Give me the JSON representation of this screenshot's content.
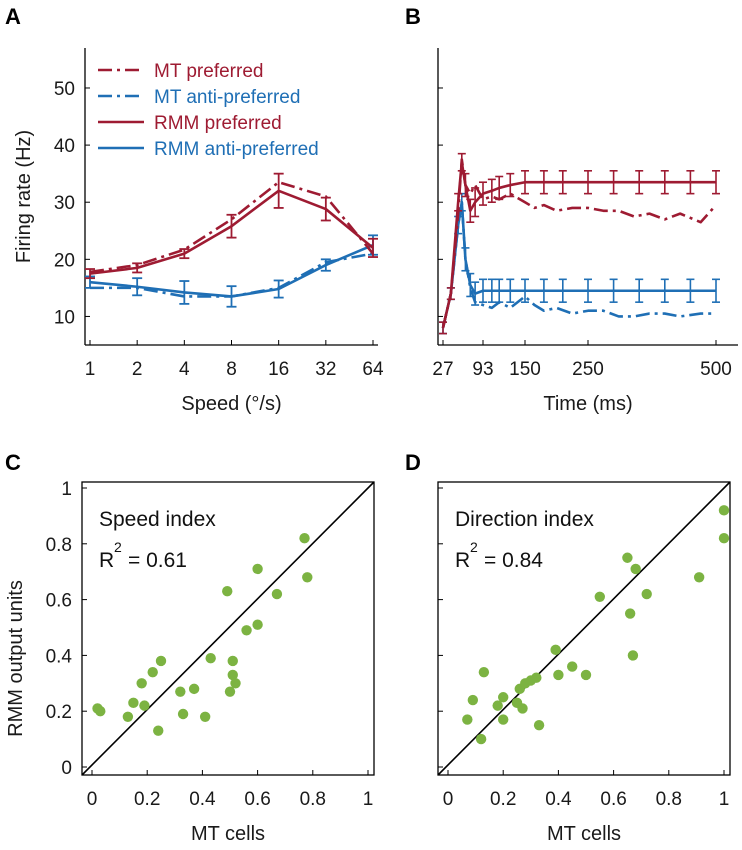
{
  "colors": {
    "red": "#9e1b32",
    "blue": "#1f6fb5",
    "green": "#7cb342",
    "axis": "#000000"
  },
  "chart_data": [
    {
      "panel": "A",
      "type": "line",
      "xlabel": "Speed (°/s)",
      "ylabel": "Firing rate (Hz)",
      "x_scale": "log2",
      "xticks": [
        1,
        2,
        4,
        8,
        16,
        32,
        64
      ],
      "xtick_labels": [
        "1",
        "2",
        "4",
        "8",
        "16",
        "32",
        "64"
      ],
      "yticks": [
        10,
        20,
        30,
        40,
        50
      ],
      "ylim": [
        5,
        57
      ],
      "legend": [
        "MT preferred",
        "MT anti-preferred",
        "RMM preferred",
        "RMM anti-preferred"
      ],
      "series": [
        {
          "name": "MT preferred",
          "style": "dashdot",
          "color": "red",
          "x": [
            1,
            2,
            4,
            8,
            16,
            32,
            64
          ],
          "values": [
            17.8,
            19.0,
            21.7,
            27.0,
            33.5,
            31.0,
            21.0
          ]
        },
        {
          "name": "MT anti-preferred",
          "style": "dashdot",
          "color": "blue",
          "x": [
            1,
            2,
            4,
            8,
            16,
            32,
            64
          ],
          "values": [
            15.0,
            15.0,
            13.5,
            13.5,
            15.0,
            19.5,
            21.0
          ]
        },
        {
          "name": "RMM preferred",
          "style": "solid",
          "color": "red",
          "x": [
            1,
            2,
            4,
            8,
            16,
            32,
            64
          ],
          "values": [
            17.5,
            18.5,
            21.0,
            25.8,
            32.0,
            28.8,
            22.0
          ],
          "err": [
            0.8,
            0.8,
            0.8,
            2.0,
            3.0,
            2.0,
            1.6
          ]
        },
        {
          "name": "RMM anti-preferred",
          "style": "solid",
          "color": "blue",
          "x": [
            1,
            2,
            4,
            8,
            16,
            32,
            64
          ],
          "values": [
            16.0,
            15.2,
            14.2,
            13.5,
            14.8,
            19.0,
            22.5
          ],
          "err": [
            1.0,
            1.5,
            2.0,
            1.8,
            1.5,
            1.0,
            1.7
          ]
        }
      ]
    },
    {
      "panel": "B",
      "type": "line",
      "xlabel": "Time (ms)",
      "xticks": [
        27,
        93,
        150,
        250,
        500
      ],
      "xtick_labels": [
        "27",
        "93",
        "150",
        "250",
        "500"
      ],
      "ylim": [
        5,
        57
      ],
      "series": [
        {
          "name": "MT preferred",
          "style": "dashdot",
          "color": "red",
          "x": [
            27,
            40,
            52,
            58,
            64,
            72,
            80,
            93,
            105,
            115,
            130,
            150,
            165,
            180,
            200,
            225,
            250,
            280,
            310,
            340,
            370,
            400,
            430,
            470,
            500
          ],
          "values": [
            8,
            14,
            28,
            37.5,
            33,
            31.5,
            33,
            30.5,
            31,
            30.5,
            31.5,
            30,
            29,
            29.5,
            28.5,
            29,
            29,
            28.5,
            28.5,
            27.5,
            28,
            27,
            28,
            26.5,
            29.5
          ]
        },
        {
          "name": "MT anti-preferred",
          "style": "dashdot",
          "color": "blue",
          "x": [
            27,
            40,
            52,
            58,
            64,
            72,
            80,
            93,
            105,
            115,
            130,
            150,
            165,
            180,
            200,
            225,
            250,
            280,
            310,
            340,
            370,
            400,
            430,
            470,
            500
          ],
          "values": [
            8,
            14,
            26,
            30,
            20,
            15,
            12.5,
            12,
            11.5,
            12.5,
            11.5,
            13.5,
            12,
            11,
            11.5,
            10.5,
            11,
            11,
            10,
            10,
            10.5,
            10.5,
            10,
            10.5,
            10.5
          ]
        },
        {
          "name": "RMM preferred",
          "style": "solid",
          "color": "red",
          "x": [
            27,
            40,
            52,
            58,
            64,
            72,
            80,
            93,
            105,
            115,
            130,
            150,
            180,
            210,
            250,
            300,
            350,
            400,
            450,
            500
          ],
          "values": [
            8,
            14,
            30,
            37,
            33,
            28.5,
            30,
            31.5,
            32,
            32.5,
            33,
            33.5,
            33.5,
            33.5,
            33.5,
            33.5,
            33.5,
            33.5,
            33.5,
            33.5
          ],
          "err": [
            1,
            1,
            1.5,
            1.5,
            2,
            2,
            2.5,
            2,
            2,
            2,
            2,
            2,
            2,
            2,
            2,
            2,
            2,
            2,
            2,
            2
          ]
        },
        {
          "name": "RMM anti-preferred",
          "style": "solid",
          "color": "blue",
          "x": [
            27,
            40,
            52,
            58,
            64,
            72,
            80,
            93,
            105,
            115,
            130,
            150,
            180,
            210,
            250,
            300,
            350,
            400,
            450,
            500
          ],
          "values": [
            8,
            14,
            26,
            30,
            20,
            15.5,
            14,
            14.5,
            14.5,
            14.5,
            14.5,
            14.5,
            14.5,
            14.5,
            14.5,
            14.5,
            14.5,
            14.5,
            14.5,
            14.5
          ],
          "err": [
            1,
            1,
            1.5,
            1.5,
            2,
            2,
            2,
            2,
            2,
            2,
            2,
            2,
            2,
            2,
            2,
            2,
            2,
            2,
            2,
            2
          ]
        }
      ]
    },
    {
      "panel": "C",
      "type": "scatter",
      "annotation_title": "Speed index",
      "r2_text": "= 0.61",
      "ylabel": "RMM output units",
      "xlabel": "MT cells",
      "xlim": [
        0,
        1
      ],
      "ylim": [
        0,
        1
      ],
      "xticks": [
        0,
        0.2,
        0.4,
        0.6,
        0.8,
        1
      ],
      "xtick_labels": [
        "0",
        "0.2",
        "0.4",
        "0.6",
        "0.8",
        "1"
      ],
      "yticks": [
        0,
        0.2,
        0.4,
        0.6,
        0.8,
        1
      ],
      "ytick_labels": [
        "0",
        "0.2",
        "0.4",
        "0.6",
        "0.8",
        "1"
      ],
      "points": [
        [
          0.02,
          0.21
        ],
        [
          0.03,
          0.2
        ],
        [
          0.13,
          0.18
        ],
        [
          0.15,
          0.23
        ],
        [
          0.18,
          0.3
        ],
        [
          0.19,
          0.22
        ],
        [
          0.22,
          0.34
        ],
        [
          0.24,
          0.13
        ],
        [
          0.25,
          0.38
        ],
        [
          0.32,
          0.27
        ],
        [
          0.33,
          0.19
        ],
        [
          0.37,
          0.28
        ],
        [
          0.41,
          0.18
        ],
        [
          0.43,
          0.39
        ],
        [
          0.49,
          0.63
        ],
        [
          0.5,
          0.27
        ],
        [
          0.51,
          0.33
        ],
        [
          0.51,
          0.38
        ],
        [
          0.52,
          0.3
        ],
        [
          0.56,
          0.49
        ],
        [
          0.6,
          0.71
        ],
        [
          0.6,
          0.51
        ],
        [
          0.67,
          0.62
        ],
        [
          0.77,
          0.82
        ],
        [
          0.78,
          0.68
        ]
      ]
    },
    {
      "panel": "D",
      "type": "scatter",
      "annotation_title": "Direction index",
      "r2_text": "= 0.84",
      "xlabel": "MT cells",
      "xlim": [
        0,
        1
      ],
      "ylim": [
        0,
        1
      ],
      "xticks": [
        0,
        0.2,
        0.4,
        0.6,
        0.8,
        1
      ],
      "xtick_labels": [
        "0",
        "0.2",
        "0.4",
        "0.6",
        "0.8",
        "1"
      ],
      "points": [
        [
          0.07,
          0.17
        ],
        [
          0.09,
          0.24
        ],
        [
          0.12,
          0.1
        ],
        [
          0.13,
          0.34
        ],
        [
          0.18,
          0.22
        ],
        [
          0.2,
          0.17
        ],
        [
          0.2,
          0.25
        ],
        [
          0.25,
          0.23
        ],
        [
          0.26,
          0.28
        ],
        [
          0.27,
          0.21
        ],
        [
          0.28,
          0.3
        ],
        [
          0.3,
          0.31
        ],
        [
          0.32,
          0.32
        ],
        [
          0.33,
          0.15
        ],
        [
          0.39,
          0.42
        ],
        [
          0.4,
          0.33
        ],
        [
          0.45,
          0.36
        ],
        [
          0.5,
          0.33
        ],
        [
          0.55,
          0.61
        ],
        [
          0.65,
          0.75
        ],
        [
          0.66,
          0.55
        ],
        [
          0.67,
          0.4
        ],
        [
          0.68,
          0.71
        ],
        [
          0.72,
          0.62
        ],
        [
          0.91,
          0.68
        ],
        [
          1.0,
          0.92
        ],
        [
          1.0,
          0.82
        ]
      ]
    }
  ],
  "labels": {
    "panelA": "A",
    "panelB": "B",
    "panelC": "C",
    "panelD": "D",
    "r2_symbol": "R",
    "r2_exponent": "2"
  }
}
